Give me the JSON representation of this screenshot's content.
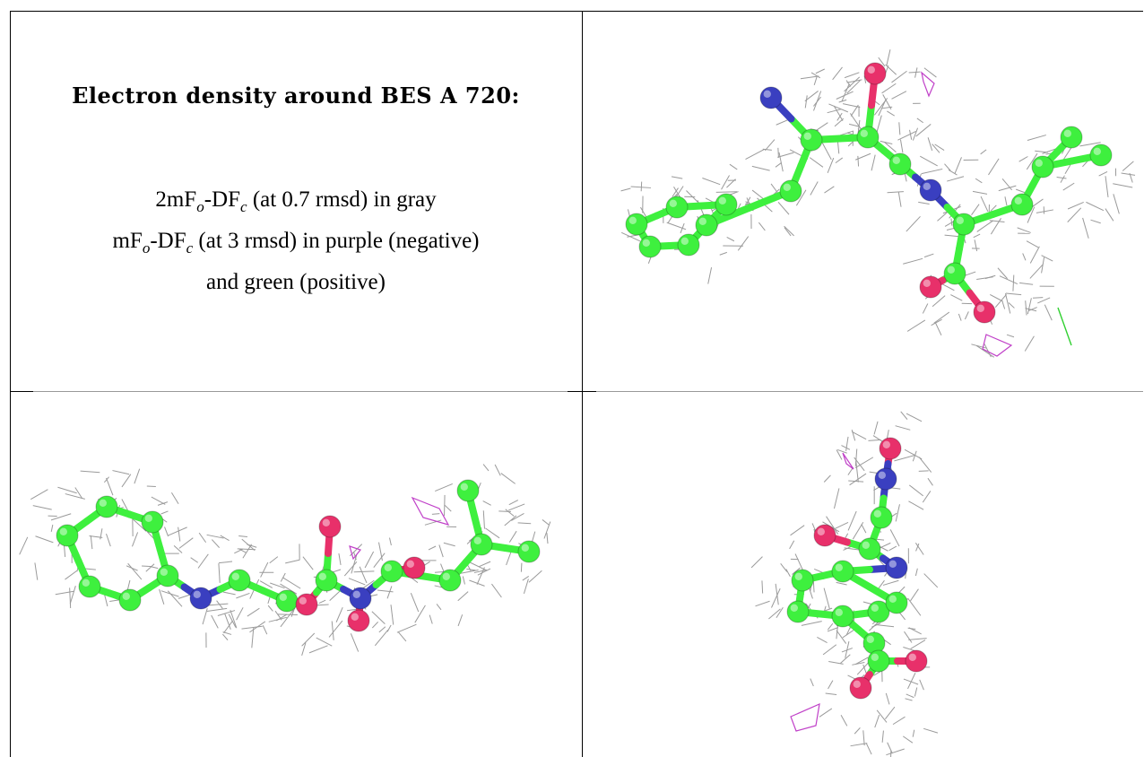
{
  "caption": {
    "title": "Electron density around BES A 720:",
    "line1_prefix": "2mF",
    "line1_sub1": "o",
    "line1_mid": "-DF",
    "line1_sub2": "c",
    "line1_suffix": " (at 0.7 rmsd) in gray",
    "line2_prefix": "mF",
    "line2_sub1": "o",
    "line2_mid": "-DF",
    "line2_sub2": "c",
    "line2_suffix": " (at 3 rmsd) in purple (negative)",
    "line3": "and green (positive)"
  },
  "colors": {
    "carbon": "#3ef03e",
    "nitrogen": "#3a3fc0",
    "oxygen": "#e8306a",
    "mesh": "#9a9a9a",
    "negative": "#c040c8",
    "positive": "#30d030"
  },
  "views": [
    "view-top-right",
    "view-bottom-left",
    "view-bottom-right"
  ]
}
